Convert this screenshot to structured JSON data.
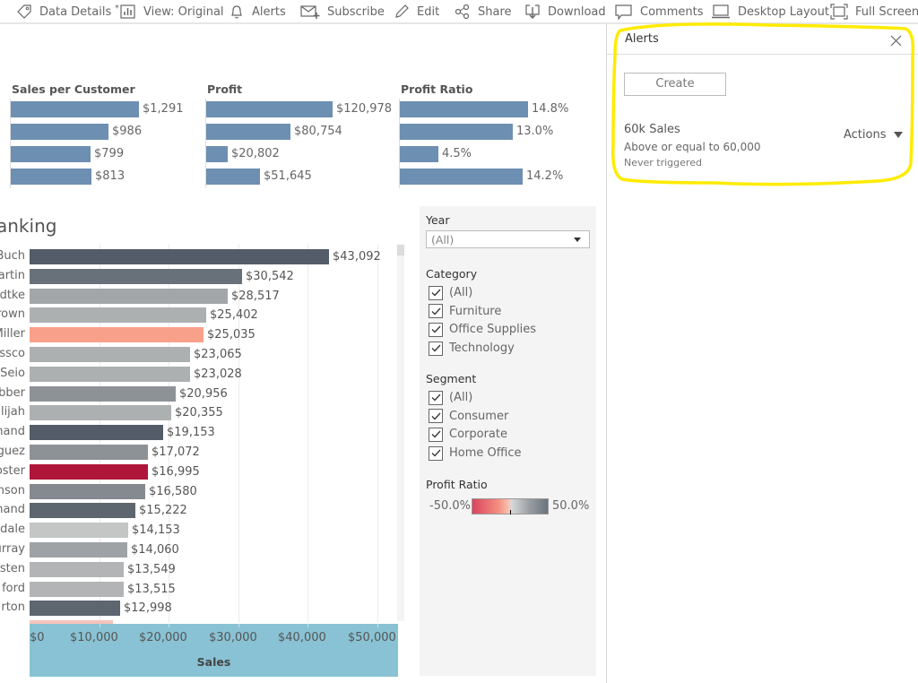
{
  "toolbar": {
    "items": [
      {
        "label": "Data Details",
        "icon": "tag-icon"
      },
      {
        "label": "View: Original",
        "icon": "view-chart-icon"
      },
      {
        "label": "Alerts",
        "icon": "bell-icon"
      },
      {
        "label": "Subscribe",
        "icon": "envelope-plus-icon"
      },
      {
        "label": "Edit",
        "icon": "pencil-icon"
      },
      {
        "label": "Share",
        "icon": "share-icon"
      },
      {
        "label": "Download",
        "icon": "download-icon"
      },
      {
        "label": "Comments",
        "icon": "comment-icon"
      },
      {
        "label": "Desktop Layout",
        "icon": "laptop-icon"
      },
      {
        "label": "Full Screen",
        "icon": "fullscreen-icon"
      }
    ]
  },
  "mini_charts": [
    {
      "title": "Sales per Customer",
      "values": [
        1291,
        986,
        799,
        813
      ],
      "labels": [
        "$1,291",
        "$986",
        "$799",
        "$813"
      ],
      "max": 1291
    },
    {
      "title": "Profit",
      "values": [
        120978,
        80754,
        20802,
        51645
      ],
      "labels": [
        "$120,978",
        "$80,754",
        "$20,802",
        "$51,645"
      ],
      "max": 120978
    },
    {
      "title": "Profit Ratio",
      "values": [
        14.8,
        13.0,
        4.5,
        14.2
      ],
      "labels": [
        "14.8%",
        "13.0%",
        "4.5%",
        "14.2%"
      ],
      "max": 14.8
    }
  ],
  "chart_data": {
    "type": "bar",
    "title": "anking",
    "xlabel": "Sales",
    "ylabel": "",
    "xlim": [
      0,
      53000
    ],
    "x_ticks": [
      "$0",
      "$10,000",
      "$20,000",
      "$30,000",
      "$40,000",
      "$50,000"
    ],
    "x_tick_values": [
      0,
      10000,
      20000,
      30000,
      40000,
      50000
    ],
    "categories": [
      "Buch",
      "artin",
      "dtke",
      "rown",
      "Miller",
      "ssco",
      "Seio",
      "bber",
      "lijah",
      "hand",
      "guez",
      "oster",
      "nson",
      "hand",
      "dale",
      "urray",
      "sten",
      "ford",
      "rton"
    ],
    "values": [
      43092,
      30542,
      28517,
      25402,
      25035,
      23065,
      23028,
      20956,
      20355,
      19153,
      17072,
      16995,
      16580,
      15222,
      14153,
      14060,
      13549,
      13515,
      12998
    ],
    "value_labels": [
      "$43,092",
      "$30,542",
      "$28,517",
      "$25,402",
      "$25,035",
      "$23,065",
      "$23,028",
      "$20,956",
      "$20,355",
      "$19,153",
      "$17,072",
      "$16,995",
      "$16,580",
      "$15,222",
      "$14,153",
      "$14,060",
      "$13,549",
      "$13,515",
      "$12,998"
    ],
    "colors": [
      "#535c68",
      "#687179",
      "#a2a6a8",
      "#adb0b1",
      "#f9a08a",
      "#adb0b1",
      "#adb0b1",
      "#8d9297",
      "#adb0b1",
      "#535c68",
      "#8d9297",
      "#b0153a",
      "#858a90",
      "#5d666f",
      "#c4c5c5",
      "#9ea2a5",
      "#b2b4b5",
      "#b2b4b5",
      "#5d666f"
    ],
    "partial_next_color": "#f4c4ba",
    "partial_next_value": 12000
  },
  "filters": {
    "year": {
      "title": "Year",
      "value": "(All)"
    },
    "category": {
      "title": "Category",
      "options": [
        "(All)",
        "Furniture",
        "Office Supplies",
        "Technology"
      ]
    },
    "segment": {
      "title": "Segment",
      "options": [
        "(All)",
        "Consumer",
        "Corporate",
        "Home Office"
      ]
    },
    "profit_ratio": {
      "title": "Profit Ratio",
      "min": "-50.0%",
      "max": "50.0%"
    }
  },
  "alerts_panel": {
    "title": "Alerts",
    "create_label": "Create",
    "alert": {
      "name": "60k Sales",
      "condition": "Above or equal to 60,000",
      "status": "Never triggered",
      "actions_label": "Actions"
    },
    "highlight_color": "#ffeb00"
  }
}
